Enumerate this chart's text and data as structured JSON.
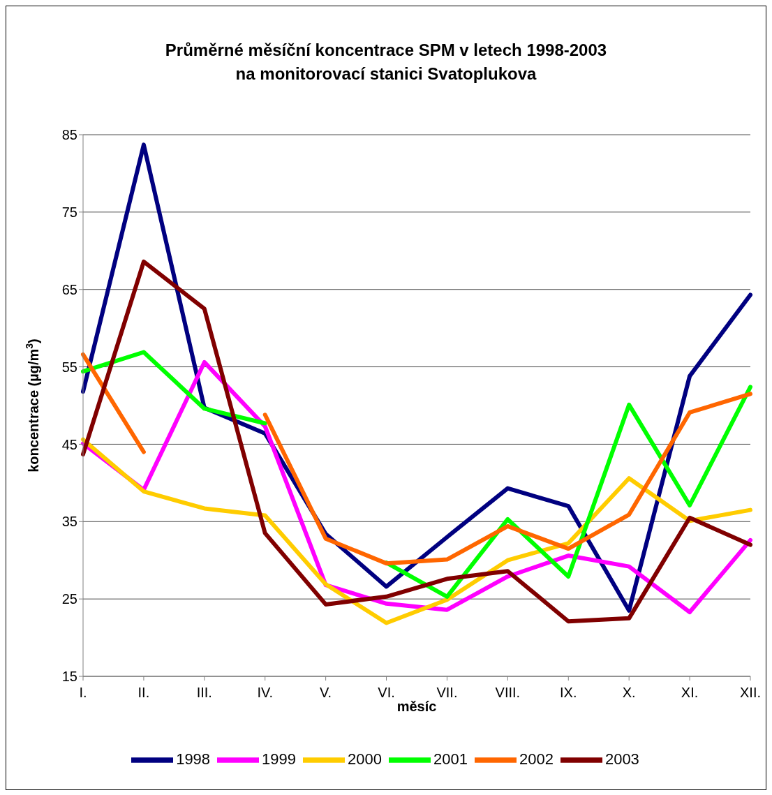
{
  "chart_data": {
    "type": "line",
    "title": "Průměrné měsíční koncentrace SPM v letech 1998-2003\nna monitorovací stanici Svatoplukova",
    "xlabel": "měsíc",
    "ylabel": "koncentrace (µg/m$^{3}$)",
    "categories": [
      "I.",
      "II.",
      "III.",
      "IV.",
      "V.",
      "VI.",
      "VII.",
      "VIII.",
      "IX.",
      "X.",
      "XI.",
      "XII."
    ],
    "series": [
      {
        "name": "1998",
        "color": "#000080",
        "values": [
          51.8,
          83.7,
          49.7,
          46.4,
          33.4,
          26.6,
          33.0,
          39.3,
          37.0,
          23.5,
          53.8,
          64.3
        ]
      },
      {
        "name": "1999",
        "color": "#ff00ff",
        "values": [
          45.1,
          39.1,
          55.6,
          47.3,
          26.8,
          24.4,
          23.6,
          27.9,
          30.6,
          29.2,
          23.3,
          32.6
        ]
      },
      {
        "name": "2000",
        "color": "#ffcc00",
        "values": [
          45.6,
          38.9,
          36.7,
          35.8,
          26.9,
          21.9,
          24.9,
          30.0,
          32.2,
          40.6,
          35.1,
          36.5
        ]
      },
      {
        "name": "2001",
        "color": "#00ff00",
        "values": [
          54.4,
          56.9,
          49.6,
          47.7,
          null,
          29.7,
          25.3,
          35.3,
          27.9,
          50.1,
          37.1,
          52.4
        ]
      },
      {
        "name": "2002",
        "color": "#ff6600",
        "values": [
          56.6,
          44.0,
          null,
          48.8,
          32.8,
          29.6,
          30.1,
          34.4,
          31.5,
          35.9,
          49.1,
          51.5
        ]
      },
      {
        "name": "2003",
        "color": "#800000",
        "values": [
          43.7,
          68.6,
          62.5,
          33.5,
          24.3,
          25.3,
          27.6,
          28.6,
          22.1,
          22.5,
          35.5,
          32.0
        ]
      }
    ],
    "ylim": [
      15,
      85
    ],
    "yticks": [
      15,
      25,
      35,
      45,
      55,
      65,
      75,
      85
    ],
    "grid": "y",
    "legend": "bottom",
    "marker": "none",
    "line_style": "solid"
  }
}
